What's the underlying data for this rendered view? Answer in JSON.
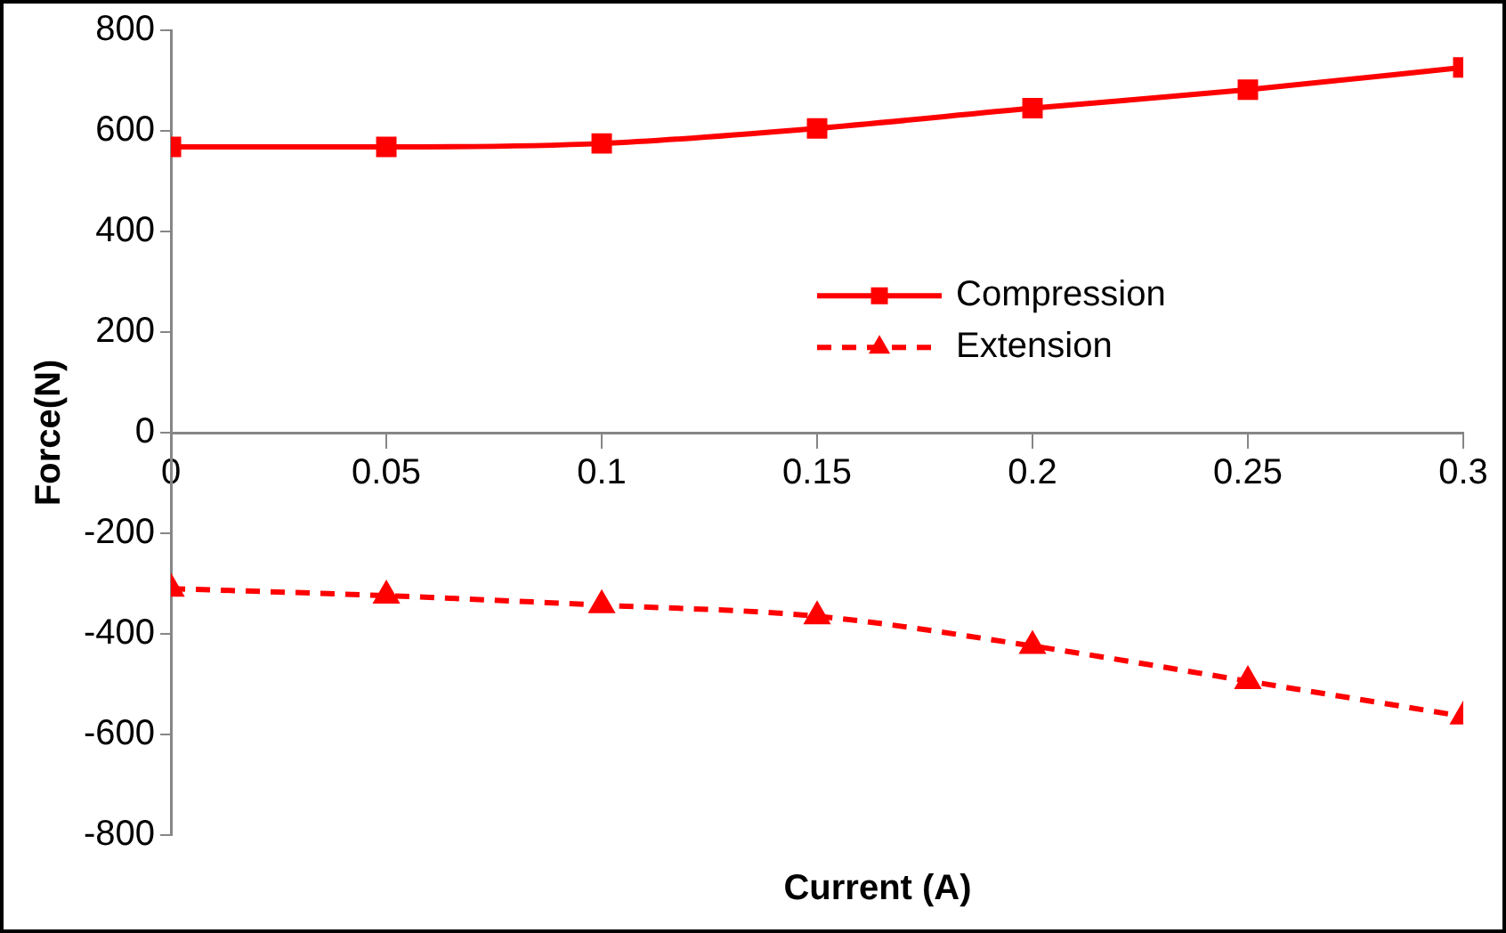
{
  "chart_data": {
    "type": "line",
    "xlabel": "Current (A)",
    "ylabel": "Force(N)",
    "x": [
      0,
      0.05,
      0.1,
      0.15,
      0.2,
      0.25,
      0.3
    ],
    "series": [
      {
        "name": "Compression",
        "color": "#ff0000",
        "marker": "square",
        "line_style": "solid",
        "values": [
          568,
          568,
          575,
          605,
          645,
          682,
          726
        ]
      },
      {
        "name": "Extension",
        "color": "#ff0000",
        "marker": "triangle",
        "line_style": "dashed",
        "values": [
          -310,
          -324,
          -343,
          -365,
          -424,
          -494,
          -564
        ]
      }
    ],
    "xlim": [
      0,
      0.3
    ],
    "xticks": [
      0,
      0.05,
      0.1,
      0.15,
      0.2,
      0.25,
      0.3
    ],
    "ylim": [
      -800,
      800
    ],
    "yticks": [
      -800,
      -600,
      -400,
      -200,
      0,
      200,
      400,
      600,
      800
    ],
    "grid": false,
    "legend": "right"
  }
}
